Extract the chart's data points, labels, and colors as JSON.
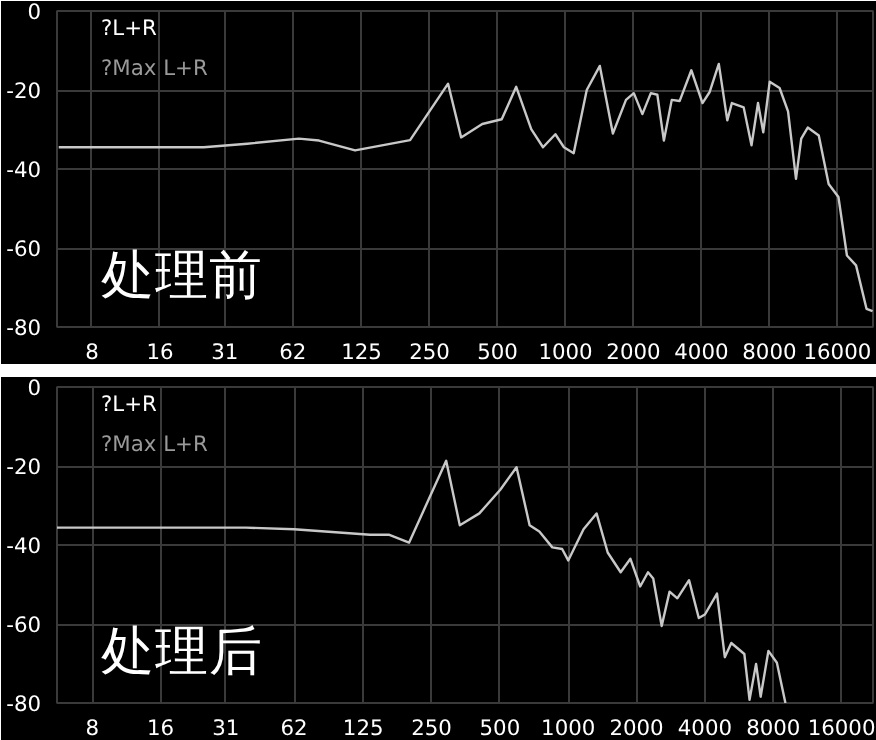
{
  "chart_data": [
    {
      "type": "line",
      "annotations": [
        "?L+R",
        "?Max L+R",
        "处理前"
      ],
      "xlim": [
        5.6,
        23000
      ],
      "ylim": [
        -80,
        0
      ],
      "xticks": [
        8,
        16,
        31,
        62,
        125,
        250,
        500,
        1000,
        2000,
        4000,
        8000,
        16000
      ],
      "yticks": [
        0,
        -20,
        -40,
        -60,
        -80
      ],
      "log": "x",
      "grid": true,
      "marker": "none",
      "line_style": "solid",
      "series": [
        {
          "color": "#c8c8c8",
          "x": [
            5.7,
            25,
            39,
            66,
            81,
            117,
            205,
            302,
            345,
            428,
            522,
            605,
            705,
            795,
            902,
            984,
            1087,
            1242,
            1419,
            1621,
            1853,
            2007,
            2190,
            2387,
            2551,
            2727,
            2955,
            3201,
            3608,
            4042,
            4350,
            4774,
            5206,
            5454,
            6152,
            6664,
            7120,
            7512,
            8024,
            8872,
            9672,
            10488,
            11064,
            11824,
            13232,
            14632,
            16168,
            17632,
            19352,
            21528,
            22900
          ],
          "values": [
            -34.5,
            -34.5,
            -33.6,
            -32.3,
            -32.8,
            -35.3,
            -32.7,
            -18.4,
            -32,
            -28.6,
            -27.4,
            -19.2,
            -29.9,
            -34.5,
            -31.2,
            -34.5,
            -36,
            -20,
            -13.9,
            -31,
            -22.5,
            -20.8,
            -26.1,
            -20.8,
            -21.2,
            -32.8,
            -22.5,
            -22.8,
            -15,
            -23.3,
            -20.5,
            -13.4,
            -27.7,
            -23.3,
            -24.4,
            -34,
            -23.3,
            -30.7,
            -17.9,
            -19.5,
            -25.4,
            -42.5,
            -32.3,
            -29.5,
            -31.5,
            -43.8,
            -47.1,
            -61.9,
            -64.4,
            -75.4,
            -76
          ]
        }
      ]
    },
    {
      "type": "line",
      "annotations": [
        "?L+R",
        "?Max L+R",
        "处理后"
      ],
      "xlim": [
        5.6,
        22000
      ],
      "ylim": [
        -80,
        0
      ],
      "xticks": [
        8,
        16,
        31,
        62,
        125,
        250,
        500,
        1000,
        2000,
        4000,
        8000,
        16000
      ],
      "yticks": [
        0,
        -20,
        -40,
        -60,
        -80
      ],
      "log": "x",
      "grid": true,
      "marker": "none",
      "line_style": "solid",
      "series": [
        {
          "color": "#c8c8c8",
          "x": [
            5.6,
            38,
            62,
            134,
            162,
            199,
            290,
            333,
            406,
            502,
            592,
            676,
            746,
            851,
            940,
            1000,
            1168,
            1333,
            1492,
            1702,
            1879,
            2075,
            2246,
            2368,
            2580,
            2795,
            3024,
            3405,
            3759,
            4000,
            4522,
            4895,
            5227,
            5968,
            6290,
            6720,
            7040,
            7617,
            8300,
            9050
          ],
          "values": [
            -35.6,
            -35.6,
            -36,
            -37.4,
            -37.4,
            -39.4,
            -18.7,
            -35,
            -32,
            -26,
            -20.3,
            -35,
            -36.6,
            -40.6,
            -41,
            -43.9,
            -36,
            -32,
            -41.9,
            -46.9,
            -43.5,
            -50.5,
            -46.9,
            -48.5,
            -60.5,
            -51.8,
            -53.5,
            -48.9,
            -58.5,
            -57.6,
            -52.3,
            -68.4,
            -64.8,
            -67.6,
            -79.2,
            -70.1,
            -78.4,
            -66.8,
            -69.8,
            -80
          ]
        }
      ]
    }
  ]
}
